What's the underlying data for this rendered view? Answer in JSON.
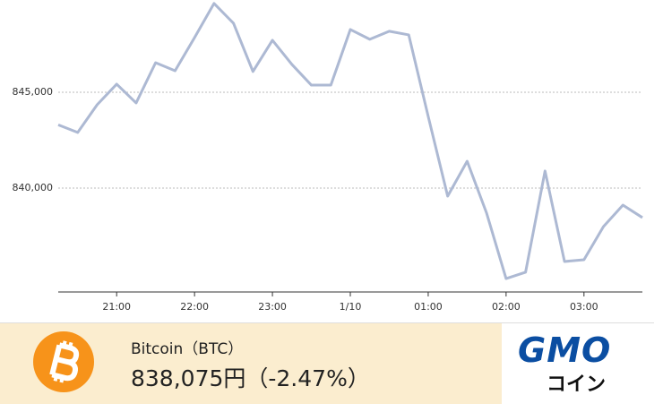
{
  "chart_data": {
    "type": "line",
    "categories": [
      null,
      null,
      null,
      "21:00",
      null,
      null,
      null,
      "22:00",
      null,
      null,
      null,
      "23:00",
      null,
      null,
      null,
      "1/10",
      null,
      null,
      null,
      "01:00",
      null,
      null,
      null,
      "02:00",
      null,
      null,
      null,
      "03:00",
      null,
      null,
      null
    ],
    "values": [
      843300,
      842900,
      844350,
      845420,
      844440,
      846540,
      846120,
      847850,
      849630,
      848600,
      846080,
      847710,
      846450,
      845370,
      845370,
      848270,
      847760,
      848180,
      847990,
      843740,
      839580,
      841400,
      838690,
      835280,
      835610,
      840890,
      836170,
      836260,
      837990,
      839110,
      838460
    ],
    "color": "#adb9d3",
    "ylim": [
      834580,
      849810
    ],
    "yticks": [
      {
        "value": 840000,
        "label": "840,000"
      },
      {
        "value": 845000,
        "label": "845,000"
      }
    ],
    "grid": true
  },
  "footer": {
    "name": "Bitcoin（BTC）",
    "price": "838,075円（-2.47%）",
    "logo": "GMO",
    "logo_sub": "コイン"
  }
}
